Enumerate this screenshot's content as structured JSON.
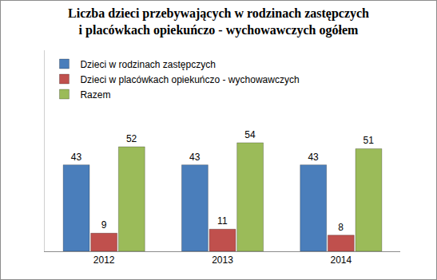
{
  "chart_data": {
    "type": "bar",
    "title": "Liczba dzieci przebywających w rodzinach zastępczych\ni placówkach opiekuńczo - wychowawczych ogółem",
    "categories": [
      "2012",
      "2013",
      "2014"
    ],
    "series": [
      {
        "name": "Dzieci w rodzinach zastępczych",
        "color": "#4a7ebb",
        "values": [
          43,
          43,
          43
        ]
      },
      {
        "name": "Dzieci w placówkach opiekuńczo - wychowawczych",
        "color": "#c0504d",
        "values": [
          9,
          11,
          8
        ]
      },
      {
        "name": "Razem",
        "color": "#9bbb59",
        "values": [
          52,
          54,
          51
        ]
      }
    ],
    "ylim": [
      0,
      100
    ],
    "grid": false,
    "legend": "upper left",
    "data_labels": true,
    "tick_labels": "x"
  }
}
